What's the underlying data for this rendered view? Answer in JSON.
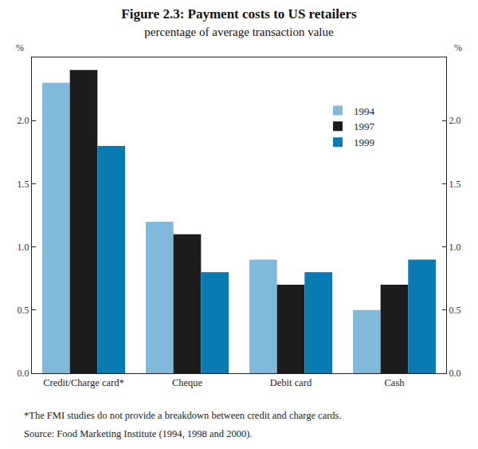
{
  "chart_data": {
    "type": "bar",
    "title": "Figure 2.3: Payment costs to US retailers",
    "subtitle": "percentage of average transaction value",
    "ylabel": "%",
    "categories": [
      "Credit/Charge card*",
      "Cheque",
      "Debit card",
      "Cash"
    ],
    "series": [
      {
        "name": "1994",
        "color": "#80b9da",
        "values": [
          2.3,
          1.2,
          0.9,
          0.5
        ]
      },
      {
        "name": "1997",
        "color": "#1c1c1c",
        "values": [
          2.4,
          1.1,
          0.7,
          0.7
        ]
      },
      {
        "name": "1999",
        "color": "#0a7ab3",
        "values": [
          1.8,
          0.8,
          0.8,
          0.9
        ]
      }
    ],
    "ylim": [
      0,
      2.5
    ],
    "yticks": [
      {
        "value": 0,
        "label": "0.0"
      },
      0.5,
      {
        "value": 1,
        "label": "1.0"
      },
      1.5,
      {
        "value": 2,
        "label": "2.0"
      }
    ],
    "y2lim": [
      0,
      2.5
    ],
    "y2ticks": [
      {
        "value": 0,
        "label": "0.0"
      },
      0.5,
      {
        "value": 1,
        "label": "1.0"
      },
      1.5,
      {
        "value": 2,
        "label": "2.0"
      }
    ],
    "grid": false,
    "legend": "upper right",
    "annotations": [
      "*The FMI studies do not provide a breakdown between credit and charge cards.",
      "Source: Food Marketing Institute (1994, 1998 and 2000)."
    ]
  }
}
